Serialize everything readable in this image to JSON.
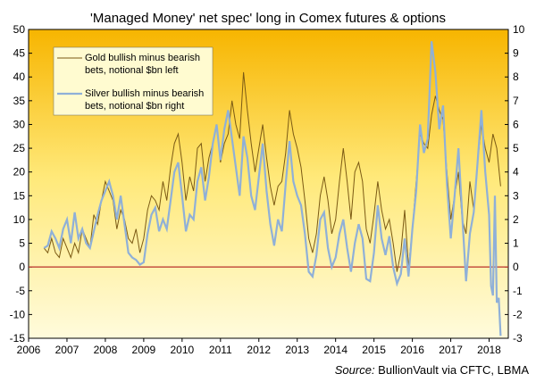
{
  "chart_data": {
    "type": "line",
    "title": "'Managed Money' net spec' long in Comex futures  & options",
    "source_label": "Source:",
    "source_text": " BullionVault via CFTC, LBMA",
    "x_ticks": [
      "2006",
      "2007",
      "2008",
      "2009",
      "2010",
      "2011",
      "2012",
      "2013",
      "2014",
      "2015",
      "2016",
      "2017",
      "2018"
    ],
    "x_range": [
      2006.0,
      2018.5
    ],
    "y_left": {
      "range": [
        -15,
        50
      ],
      "ticks": [
        -15,
        -10,
        -5,
        0,
        5,
        10,
        15,
        20,
        25,
        30,
        35,
        40,
        45,
        50
      ]
    },
    "y_right": {
      "range": [
        -3,
        10
      ],
      "ticks": [
        -3,
        -2,
        -1,
        0,
        1,
        2,
        3,
        4,
        5,
        6,
        7,
        8,
        9,
        10
      ]
    },
    "grid": false,
    "legend_position": "top-left",
    "colors": {
      "gold": "#7b5a14",
      "silver": "#8fb0d8",
      "zero_line": "#b8322a",
      "bg_top": "#f7b500",
      "bg_mid": "#ffe97a",
      "bg_bottom": "#fffbdc",
      "legend_bg": "#fffbd0"
    },
    "series": [
      {
        "name": "Gold bullish minus bearish bets, notional $bn left",
        "axis": "left",
        "points": [
          [
            2006.4,
            4
          ],
          [
            2006.5,
            3
          ],
          [
            2006.6,
            6
          ],
          [
            2006.7,
            3
          ],
          [
            2006.8,
            2
          ],
          [
            2006.9,
            6
          ],
          [
            2007.0,
            4
          ],
          [
            2007.1,
            2
          ],
          [
            2007.2,
            5
          ],
          [
            2007.3,
            3
          ],
          [
            2007.4,
            8
          ],
          [
            2007.5,
            6
          ],
          [
            2007.6,
            4
          ],
          [
            2007.7,
            11
          ],
          [
            2007.8,
            9
          ],
          [
            2007.9,
            14
          ],
          [
            2008.0,
            18
          ],
          [
            2008.1,
            16
          ],
          [
            2008.2,
            14
          ],
          [
            2008.3,
            8
          ],
          [
            2008.4,
            12
          ],
          [
            2008.5,
            10
          ],
          [
            2008.6,
            6
          ],
          [
            2008.7,
            5
          ],
          [
            2008.8,
            8
          ],
          [
            2008.9,
            3
          ],
          [
            2009.0,
            6
          ],
          [
            2009.1,
            12
          ],
          [
            2009.2,
            15
          ],
          [
            2009.3,
            14
          ],
          [
            2009.4,
            12
          ],
          [
            2009.5,
            18
          ],
          [
            2009.6,
            14
          ],
          [
            2009.7,
            21
          ],
          [
            2009.8,
            26
          ],
          [
            2009.9,
            28
          ],
          [
            2010.0,
            22
          ],
          [
            2010.1,
            14
          ],
          [
            2010.2,
            19
          ],
          [
            2010.3,
            16
          ],
          [
            2010.4,
            25
          ],
          [
            2010.5,
            26
          ],
          [
            2010.6,
            18
          ],
          [
            2010.7,
            23
          ],
          [
            2010.8,
            26
          ],
          [
            2010.9,
            30
          ],
          [
            2011.0,
            22
          ],
          [
            2011.1,
            26
          ],
          [
            2011.2,
            28
          ],
          [
            2011.3,
            35
          ],
          [
            2011.4,
            30
          ],
          [
            2011.5,
            27
          ],
          [
            2011.6,
            41
          ],
          [
            2011.7,
            33
          ],
          [
            2011.8,
            26
          ],
          [
            2011.9,
            20
          ],
          [
            2012.0,
            25
          ],
          [
            2012.1,
            30
          ],
          [
            2012.2,
            23
          ],
          [
            2012.3,
            17
          ],
          [
            2012.4,
            13
          ],
          [
            2012.5,
            17
          ],
          [
            2012.6,
            18
          ],
          [
            2012.7,
            24
          ],
          [
            2012.8,
            33
          ],
          [
            2012.9,
            28
          ],
          [
            2013.0,
            25
          ],
          [
            2013.1,
            21
          ],
          [
            2013.2,
            14
          ],
          [
            2013.3,
            6
          ],
          [
            2013.4,
            3
          ],
          [
            2013.5,
            7
          ],
          [
            2013.6,
            15
          ],
          [
            2013.7,
            19
          ],
          [
            2013.8,
            14
          ],
          [
            2013.9,
            7
          ],
          [
            2014.0,
            10
          ],
          [
            2014.1,
            18
          ],
          [
            2014.2,
            25
          ],
          [
            2014.3,
            18
          ],
          [
            2014.4,
            10
          ],
          [
            2014.5,
            20
          ],
          [
            2014.6,
            22
          ],
          [
            2014.7,
            18
          ],
          [
            2014.8,
            8
          ],
          [
            2014.9,
            5
          ],
          [
            2015.0,
            11
          ],
          [
            2015.1,
            18
          ],
          [
            2015.2,
            12
          ],
          [
            2015.3,
            8
          ],
          [
            2015.4,
            10
          ],
          [
            2015.5,
            5
          ],
          [
            2015.6,
            -1
          ],
          [
            2015.7,
            3
          ],
          [
            2015.8,
            12
          ],
          [
            2015.9,
            0
          ],
          [
            2016.0,
            8
          ],
          [
            2016.1,
            18
          ],
          [
            2016.2,
            28
          ],
          [
            2016.3,
            26
          ],
          [
            2016.4,
            25
          ],
          [
            2016.5,
            32
          ],
          [
            2016.6,
            36
          ],
          [
            2016.7,
            33
          ],
          [
            2016.8,
            31
          ],
          [
            2016.9,
            20
          ],
          [
            2017.0,
            10
          ],
          [
            2017.1,
            15
          ],
          [
            2017.2,
            20
          ],
          [
            2017.3,
            10
          ],
          [
            2017.4,
            7
          ],
          [
            2017.5,
            18
          ],
          [
            2017.6,
            12
          ],
          [
            2017.7,
            22
          ],
          [
            2017.8,
            30
          ],
          [
            2017.9,
            25
          ],
          [
            2018.0,
            22
          ],
          [
            2018.1,
            28
          ],
          [
            2018.2,
            25
          ],
          [
            2018.3,
            17
          ]
        ]
      },
      {
        "name": "Silver bullish minus bearish bets, notional $bn right",
        "axis": "right",
        "points": [
          [
            2006.4,
            0.8
          ],
          [
            2006.5,
            0.9
          ],
          [
            2006.6,
            1.5
          ],
          [
            2006.7,
            1.2
          ],
          [
            2006.8,
            0.8
          ],
          [
            2006.9,
            1.6
          ],
          [
            2007.0,
            2.0
          ],
          [
            2007.1,
            1.0
          ],
          [
            2007.2,
            2.3
          ],
          [
            2007.3,
            1.2
          ],
          [
            2007.4,
            1.6
          ],
          [
            2007.5,
            1.0
          ],
          [
            2007.6,
            0.8
          ],
          [
            2007.7,
            1.5
          ],
          [
            2007.8,
            2.2
          ],
          [
            2007.9,
            2.8
          ],
          [
            2008.0,
            3.2
          ],
          [
            2008.1,
            3.6
          ],
          [
            2008.2,
            3.0
          ],
          [
            2008.3,
            2.0
          ],
          [
            2008.4,
            3.0
          ],
          [
            2008.5,
            1.8
          ],
          [
            2008.6,
            0.6
          ],
          [
            2008.7,
            0.4
          ],
          [
            2008.8,
            0.3
          ],
          [
            2008.9,
            0.1
          ],
          [
            2009.0,
            0.2
          ],
          [
            2009.1,
            1.4
          ],
          [
            2009.2,
            2.2
          ],
          [
            2009.3,
            2.5
          ],
          [
            2009.4,
            1.5
          ],
          [
            2009.5,
            2.0
          ],
          [
            2009.6,
            1.6
          ],
          [
            2009.7,
            2.8
          ],
          [
            2009.8,
            4.0
          ],
          [
            2009.9,
            4.4
          ],
          [
            2010.0,
            3.0
          ],
          [
            2010.1,
            1.5
          ],
          [
            2010.2,
            2.2
          ],
          [
            2010.3,
            2.0
          ],
          [
            2010.4,
            3.6
          ],
          [
            2010.5,
            4.2
          ],
          [
            2010.6,
            2.8
          ],
          [
            2010.7,
            3.8
          ],
          [
            2010.8,
            5.2
          ],
          [
            2010.9,
            6.0
          ],
          [
            2011.0,
            4.5
          ],
          [
            2011.1,
            5.8
          ],
          [
            2011.2,
            6.6
          ],
          [
            2011.3,
            5.4
          ],
          [
            2011.4,
            4.2
          ],
          [
            2011.5,
            3.0
          ],
          [
            2011.6,
            5.5
          ],
          [
            2011.7,
            4.6
          ],
          [
            2011.8,
            3.0
          ],
          [
            2011.9,
            2.4
          ],
          [
            2012.0,
            3.8
          ],
          [
            2012.1,
            5.2
          ],
          [
            2012.2,
            3.2
          ],
          [
            2012.3,
            1.8
          ],
          [
            2012.4,
            0.9
          ],
          [
            2012.5,
            2.0
          ],
          [
            2012.6,
            1.5
          ],
          [
            2012.7,
            3.5
          ],
          [
            2012.8,
            5.3
          ],
          [
            2012.9,
            3.6
          ],
          [
            2013.0,
            3.0
          ],
          [
            2013.1,
            2.6
          ],
          [
            2013.2,
            1.4
          ],
          [
            2013.3,
            -0.2
          ],
          [
            2013.4,
            -0.4
          ],
          [
            2013.5,
            0.5
          ],
          [
            2013.6,
            2.0
          ],
          [
            2013.7,
            2.3
          ],
          [
            2013.8,
            0.8
          ],
          [
            2013.9,
            0.0
          ],
          [
            2014.0,
            0.4
          ],
          [
            2014.1,
            1.4
          ],
          [
            2014.2,
            2.0
          ],
          [
            2014.3,
            0.8
          ],
          [
            2014.4,
            -0.2
          ],
          [
            2014.5,
            1.0
          ],
          [
            2014.6,
            1.8
          ],
          [
            2014.7,
            1.2
          ],
          [
            2014.8,
            -0.5
          ],
          [
            2014.9,
            -0.6
          ],
          [
            2015.0,
            0.6
          ],
          [
            2015.1,
            2.6
          ],
          [
            2015.2,
            1.2
          ],
          [
            2015.3,
            0.5
          ],
          [
            2015.4,
            1.3
          ],
          [
            2015.5,
            0.0
          ],
          [
            2015.6,
            -0.7
          ],
          [
            2015.7,
            -0.3
          ],
          [
            2015.8,
            1.2
          ],
          [
            2015.9,
            -0.4
          ],
          [
            2016.0,
            1.6
          ],
          [
            2016.1,
            3.2
          ],
          [
            2016.2,
            6.0
          ],
          [
            2016.3,
            4.8
          ],
          [
            2016.4,
            5.4
          ],
          [
            2016.5,
            9.5
          ],
          [
            2016.6,
            8.2
          ],
          [
            2016.7,
            5.8
          ],
          [
            2016.8,
            6.8
          ],
          [
            2016.9,
            3.5
          ],
          [
            2017.0,
            1.2
          ],
          [
            2017.1,
            3.0
          ],
          [
            2017.2,
            5.0
          ],
          [
            2017.3,
            2.2
          ],
          [
            2017.4,
            -0.6
          ],
          [
            2017.5,
            1.4
          ],
          [
            2017.6,
            2.3
          ],
          [
            2017.7,
            4.4
          ],
          [
            2017.8,
            6.6
          ],
          [
            2017.9,
            4.0
          ],
          [
            2018.0,
            2.2
          ],
          [
            2018.05,
            -0.8
          ],
          [
            2018.1,
            -1.2
          ],
          [
            2018.15,
            3.0
          ],
          [
            2018.2,
            -1.5
          ],
          [
            2018.25,
            -1.3
          ],
          [
            2018.3,
            -2.9
          ]
        ]
      }
    ]
  }
}
